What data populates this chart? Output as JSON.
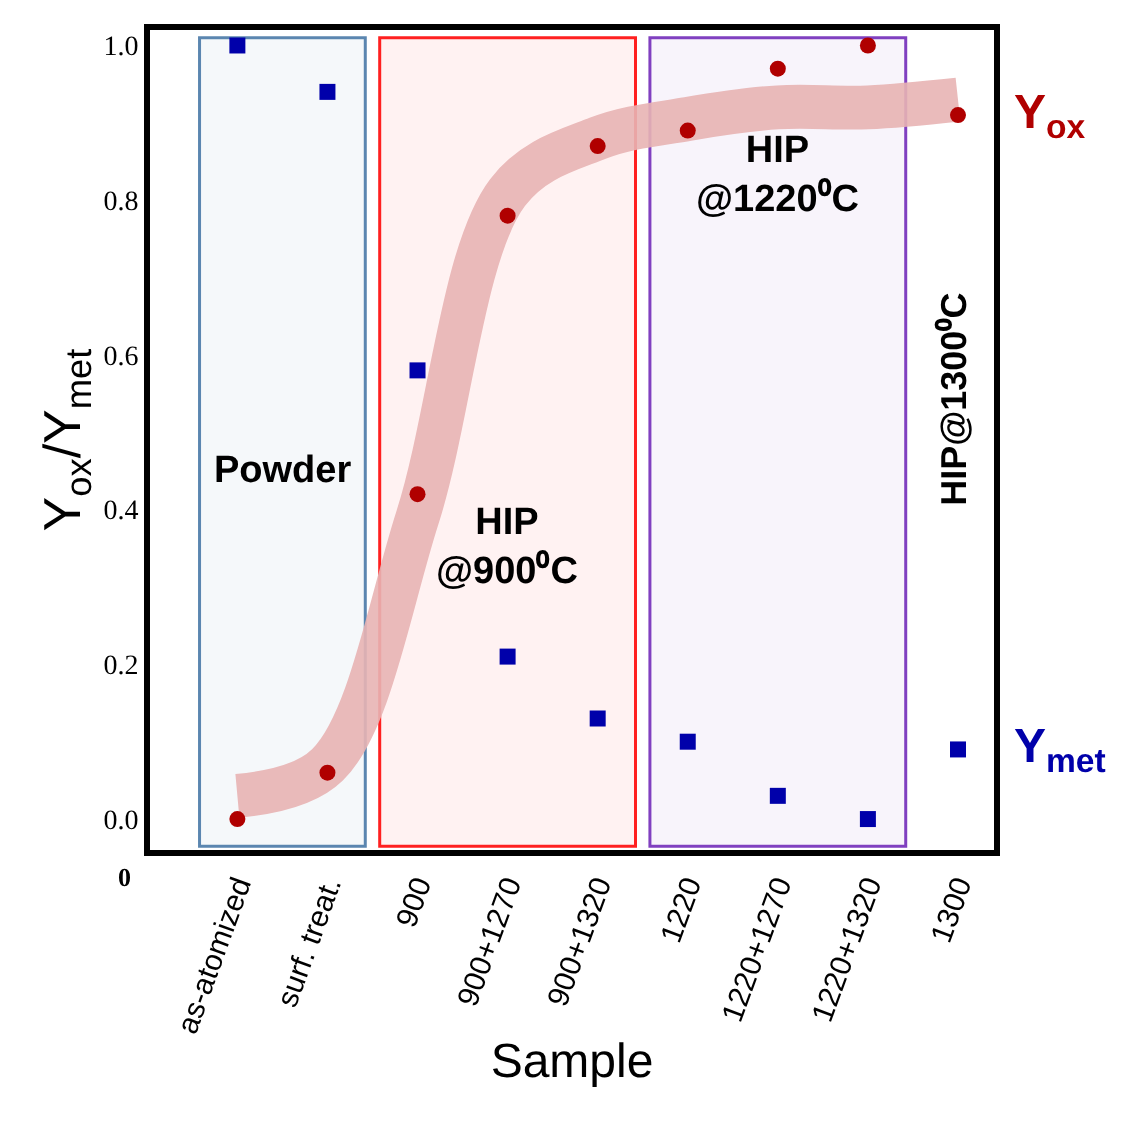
{
  "chart_data": {
    "type": "scatter",
    "xlabel": "Sample",
    "ylabel": "Y$_{ox}$/Y$_{met}$",
    "categories": [
      "as-atomized",
      "surf. treat.",
      "900",
      "900+1270",
      "900+1320",
      "1220",
      "1220+1270",
      "1220+1320",
      "1300"
    ],
    "series": [
      {
        "type": "line",
        "color": "#e8b4b4",
        "values": [
          0.03,
          0.07,
          0.39,
          0.81,
          0.88,
          0.905,
          0.92,
          0.92,
          0.93
        ],
        "marker": "none"
      },
      {
        "name": "Y$_{ox}$",
        "color": "#b00000",
        "marker": "circle",
        "values": [
          0.0,
          0.06,
          0.42,
          0.78,
          0.87,
          0.89,
          0.97,
          1.0,
          0.91
        ]
      },
      {
        "name": "Y$_{met}$",
        "color": "#0000aa",
        "marker": "square",
        "values": [
          1.0,
          0.94,
          0.58,
          0.21,
          0.13,
          0.1,
          0.03,
          0.0,
          0.09
        ]
      }
    ],
    "ylim": [
      -0.04,
      1.02
    ],
    "yticks": [
      {
        "value": 0,
        "label": "0.0"
      },
      {
        "value": 0.2,
        "label": "0.2"
      },
      {
        "value": 0.4,
        "label": "0.4"
      },
      {
        "value": 0.6,
        "label": "0.6"
      },
      {
        "value": 0.8,
        "label": "0.8"
      },
      {
        "value": 1,
        "label": "1.0"
      }
    ],
    "bands": [
      {
        "axis": "x",
        "from": "as-atomized",
        "to": "surf. treat.",
        "label": "Powder",
        "color": "#5b86b0"
      },
      {
        "axis": "x",
        "from": "900",
        "to": "900+1320",
        "label": "HIP @900⁰C",
        "color": "#ff2020"
      },
      {
        "axis": "x",
        "from": "1220",
        "to": "1220+1320",
        "label": "HIP @1220⁰C",
        "color": "#8040c0"
      }
    ],
    "annotations": [
      "HIP@1300⁰C",
      "0"
    ],
    "grid": false
  }
}
